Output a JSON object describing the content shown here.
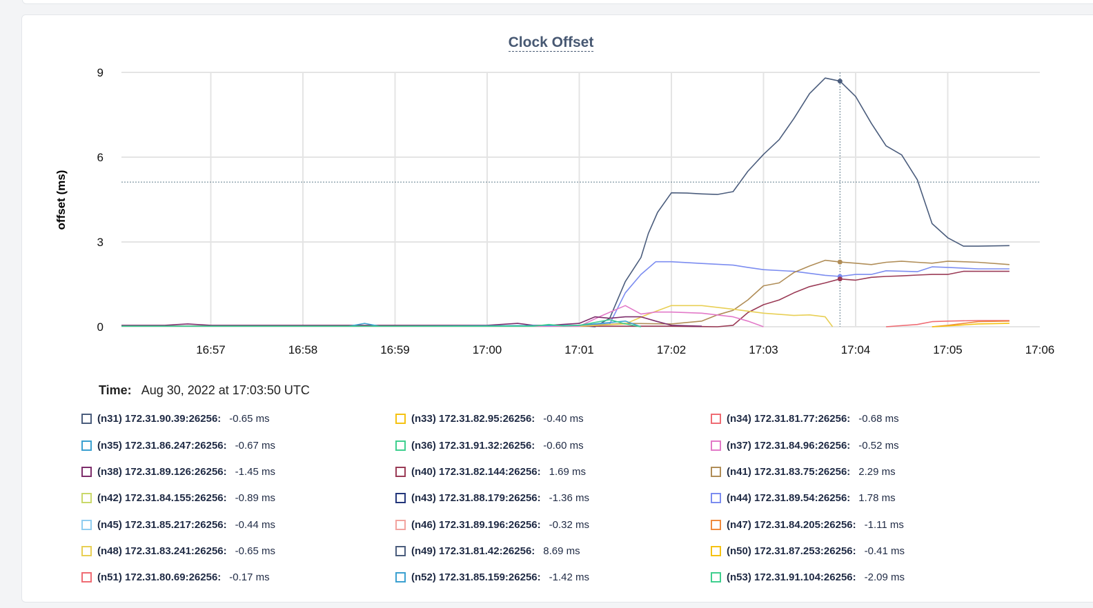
{
  "top_panel": {},
  "chart_data": {
    "type": "line",
    "title": "Clock Offset",
    "xlabel": "",
    "ylabel": "offset (ms)",
    "ylim": [
      0,
      9
    ],
    "yticks": [
      0,
      3,
      6,
      9
    ],
    "xticks": [
      "16:57",
      "16:58",
      "16:59",
      "17:00",
      "17:01",
      "17:02",
      "17:03",
      "17:04",
      "17:05",
      "17:06"
    ],
    "xticks_min": [
      537,
      538,
      539,
      540,
      541,
      542,
      543,
      544,
      545,
      546
    ],
    "xlim_min": [
      536.03,
      546.0
    ],
    "grid": true,
    "cursor_time_min": 543.83,
    "cursor_value": 5.12,
    "series": [
      {
        "name": "(n49) 172.31.81.42:26256",
        "color": "#4a5c7c",
        "x": [
          536.03,
          536.5,
          537,
          538,
          539,
          540,
          540.5,
          541.0,
          541.17,
          541.33,
          541.5,
          541.67,
          541.75,
          541.85,
          542.0,
          542.17,
          542.33,
          542.5,
          542.67,
          542.83,
          543.0,
          543.17,
          543.33,
          543.5,
          543.67,
          543.83,
          544.0,
          544.17,
          544.33,
          544.5,
          544.67,
          544.83,
          545.0,
          545.17,
          545.33,
          545.67
        ],
        "y": [
          0.02,
          0.02,
          0.02,
          0.02,
          0.02,
          0.02,
          0.02,
          0.05,
          0.0,
          0.3,
          1.6,
          2.45,
          3.3,
          4.05,
          4.74,
          4.73,
          4.7,
          4.68,
          4.78,
          5.5,
          6.1,
          6.62,
          7.37,
          8.25,
          8.8,
          8.69,
          8.15,
          7.2,
          6.4,
          6.08,
          5.2,
          3.65,
          3.15,
          2.85,
          2.85,
          2.87
        ]
      },
      {
        "name": "(n44) 172.31.89.54:26256",
        "color": "#7b8cf0",
        "x": [
          536.03,
          540.5,
          541.0,
          541.33,
          541.5,
          541.67,
          541.83,
          542.0,
          542.33,
          542.67,
          542.83,
          543.0,
          543.33,
          543.67,
          543.83,
          544.0,
          544.17,
          544.33,
          544.67,
          544.83,
          545.0,
          545.33,
          545.67
        ],
        "y": [
          0.02,
          0.02,
          0.05,
          0.1,
          1.2,
          1.85,
          2.3,
          2.3,
          2.24,
          2.18,
          2.1,
          2.02,
          1.96,
          1.82,
          1.78,
          1.85,
          1.85,
          1.98,
          1.95,
          2.12,
          2.1,
          2.05,
          2.05
        ]
      },
      {
        "name": "(n41) 172.31.83.75:26256",
        "color": "#b08d57",
        "x": [
          536.03,
          541.0,
          541.5,
          542.0,
          542.33,
          542.5,
          542.67,
          542.83,
          543.0,
          543.17,
          543.33,
          543.5,
          543.67,
          543.83,
          544.0,
          544.17,
          544.33,
          544.5,
          544.67,
          544.83,
          545.0,
          545.17,
          545.33,
          545.67
        ],
        "y": [
          0.02,
          0.02,
          0.12,
          0.1,
          0.2,
          0.42,
          0.58,
          0.95,
          1.45,
          1.55,
          1.92,
          2.15,
          2.35,
          2.29,
          2.25,
          2.2,
          2.28,
          2.32,
          2.28,
          2.25,
          2.32,
          2.3,
          2.28,
          2.2
        ]
      },
      {
        "name": "(n40) 172.31.82.144:26256",
        "color": "#9a3a55",
        "x": [
          536.03,
          541.0,
          542.0,
          542.5,
          542.67,
          542.83,
          543.0,
          543.17,
          543.33,
          543.5,
          543.67,
          543.83,
          544.0,
          544.17,
          544.33,
          544.5,
          544.67,
          544.83,
          545.0,
          545.17,
          545.33,
          545.67
        ],
        "y": [
          0.02,
          0.02,
          0.02,
          0.0,
          0.05,
          0.5,
          0.78,
          0.95,
          1.2,
          1.42,
          1.55,
          1.69,
          1.65,
          1.75,
          1.78,
          1.8,
          1.83,
          1.85,
          1.85,
          1.96,
          1.96,
          1.96
        ]
      },
      {
        "name": "(n48) 172.31.83.241:26256",
        "color": "#e8cf54",
        "x": [
          536.03,
          541.0,
          541.5,
          541.75,
          542.0,
          542.33,
          542.67,
          543.0,
          543.33,
          543.5,
          543.67,
          543.75
        ],
        "y": [
          0.02,
          0.02,
          0.1,
          0.45,
          0.75,
          0.75,
          0.62,
          0.48,
          0.4,
          0.42,
          0.35,
          0.0
        ]
      },
      {
        "name": "(n37) 172.31.84.96:26256",
        "color": "#e279c8",
        "x": [
          536.03,
          541.0,
          541.25,
          541.5,
          541.67,
          541.83,
          542.0,
          542.33,
          542.67,
          542.83,
          543.0
        ],
        "y": [
          0.02,
          0.02,
          0.4,
          0.75,
          0.45,
          0.52,
          0.52,
          0.48,
          0.35,
          0.2,
          0.0
        ]
      },
      {
        "name": "(n38) 172.31.89.126:26256",
        "color": "#7d2d6b",
        "x": [
          536.03,
          536.5,
          536.75,
          537,
          538,
          539,
          540,
          540.33,
          540.5,
          540.67,
          541.0,
          541.17,
          541.33,
          541.5,
          541.67,
          541.83,
          542.0,
          542.33
        ],
        "y": [
          0.05,
          0.05,
          0.1,
          0.05,
          0.05,
          0.05,
          0.05,
          0.12,
          0.05,
          0.05,
          0.12,
          0.35,
          0.3,
          0.35,
          0.35,
          0.2,
          0.05,
          0.02
        ]
      },
      {
        "name": "(n52) 172.31.85.159:26256",
        "color": "#3aa0d0",
        "x": [
          536.03,
          538.5,
          538.67,
          538.83,
          539,
          541.0,
          541.5,
          541.67
        ],
        "y": [
          0.02,
          0.02,
          0.12,
          0.02,
          0.02,
          0.05,
          0.2,
          0.0
        ]
      },
      {
        "name": "(n53) 172.31.91.104:26256",
        "color": "#3ecf8e",
        "x": [
          536.03,
          540.5,
          540.67,
          540.83,
          541.0,
          541.33,
          541.5,
          541.67
        ],
        "y": [
          0.02,
          0.02,
          0.08,
          0.03,
          0.05,
          0.25,
          0.1,
          0.0
        ]
      },
      {
        "name": "(n51) 172.31.80.69:26256",
        "color": "#ef6b73",
        "x": [
          544.33,
          544.67,
          544.83,
          545.0,
          545.33,
          545.67
        ],
        "y": [
          0.0,
          0.08,
          0.18,
          0.2,
          0.22,
          0.22
        ]
      },
      {
        "name": "(n47) 172.31.84.205:26256",
        "color": "#f08a3c",
        "x": [
          544.83,
          545.0,
          545.33,
          545.67
        ],
        "y": [
          0.0,
          0.05,
          0.18,
          0.2
        ]
      },
      {
        "name": "(n50) 172.31.87.253:26256",
        "color": "#f5c211",
        "x": [
          544.83,
          545.0,
          545.33,
          545.67
        ],
        "y": [
          0.0,
          0.03,
          0.1,
          0.12
        ]
      }
    ]
  },
  "time_row": {
    "label": "Time:",
    "value": "Aug 30, 2022 at 17:03:50 UTC"
  },
  "legend": [
    {
      "name": "(n31) 172.31.90.39:26256:",
      "value": "-0.65 ms",
      "color": "#4a5c7c"
    },
    {
      "name": "(n33) 172.31.82.95:26256:",
      "value": "-0.40 ms",
      "color": "#f5c211"
    },
    {
      "name": "(n34) 172.31.81.77:26256:",
      "value": "-0.68 ms",
      "color": "#ef6b73"
    },
    {
      "name": "(n35) 172.31.86.247:26256:",
      "value": "-0.67 ms",
      "color": "#3aa0d0"
    },
    {
      "name": "(n36) 172.31.91.32:26256:",
      "value": "-0.60 ms",
      "color": "#3ecf8e"
    },
    {
      "name": "(n37) 172.31.84.96:26256:",
      "value": "-0.52 ms",
      "color": "#e279c8"
    },
    {
      "name": "(n38) 172.31.89.126:26256:",
      "value": "-1.45 ms",
      "color": "#7d2d6b"
    },
    {
      "name": "(n40) 172.31.82.144:26256:",
      "value": "1.69 ms",
      "color": "#9a3a55"
    },
    {
      "name": "(n41) 172.31.83.75:26256:",
      "value": "2.29 ms",
      "color": "#b08d57"
    },
    {
      "name": "(n42) 172.31.84.155:26256:",
      "value": "-0.89 ms",
      "color": "#c9d86a"
    },
    {
      "name": "(n43) 172.31.88.179:26256:",
      "value": "-1.36 ms",
      "color": "#22357a"
    },
    {
      "name": "(n44) 172.31.89.54:26256:",
      "value": "1.78 ms",
      "color": "#7b8cf0"
    },
    {
      "name": "(n45) 172.31.85.217:26256:",
      "value": "-0.44 ms",
      "color": "#8fcdf0"
    },
    {
      "name": "(n46) 172.31.89.196:26256:",
      "value": "-0.32 ms",
      "color": "#f2a39e"
    },
    {
      "name": "(n47) 172.31.84.205:26256:",
      "value": "-1.11 ms",
      "color": "#f08a3c"
    },
    {
      "name": "(n48) 172.31.83.241:26256:",
      "value": "-0.65 ms",
      "color": "#e8cf54"
    },
    {
      "name": "(n49) 172.31.81.42:26256:",
      "value": "8.69 ms",
      "color": "#4a5c7c"
    },
    {
      "name": "(n50) 172.31.87.253:26256:",
      "value": "-0.41 ms",
      "color": "#f5c211"
    },
    {
      "name": "(n51) 172.31.80.69:26256:",
      "value": "-0.17 ms",
      "color": "#ef6b73"
    },
    {
      "name": "(n52) 172.31.85.159:26256:",
      "value": "-1.42 ms",
      "color": "#3aa0d0"
    },
    {
      "name": "(n53) 172.31.91.104:26256:",
      "value": "-2.09 ms",
      "color": "#3ecf8e"
    }
  ]
}
